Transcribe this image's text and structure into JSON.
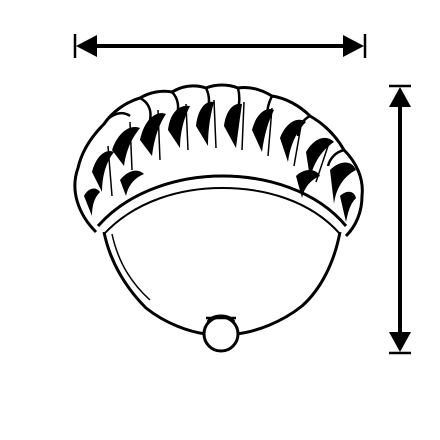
{
  "colors": {
    "background": "#ffffff",
    "line": "#000000"
  },
  "diagram": {
    "subject": "flush-mount-ceiling-light-icon",
    "dimension_arrows": [
      "width-arrow",
      "height-arrow"
    ]
  }
}
